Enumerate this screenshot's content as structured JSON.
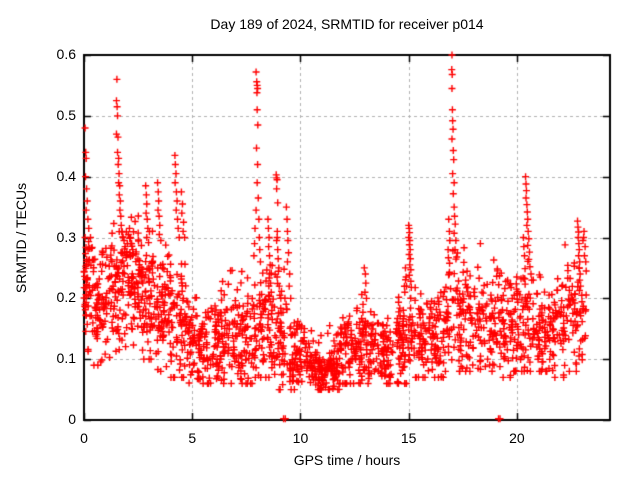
{
  "chart_data": {
    "type": "scatter",
    "title": "Day 189 of 2024, SRMTID for receiver p014",
    "xlabel": "GPS time / hours",
    "ylabel": "SRMTID / TECUs",
    "xlim": [
      0,
      24.3
    ],
    "ylim": [
      0,
      0.6
    ],
    "xtick_values": [
      0,
      5,
      10,
      15,
      20
    ],
    "xtick_labels": [
      "0",
      "5",
      "10",
      "15",
      "20"
    ],
    "ytick_values": [
      0,
      0.1,
      0.2,
      0.3,
      0.4,
      0.5,
      0.6
    ],
    "ytick_labels": [
      "0",
      "0.1",
      "0.2",
      "0.3",
      "0.4",
      "0.5",
      "0.6"
    ],
    "grid": true,
    "legend": "none",
    "marker": {
      "shape": "plus",
      "color": "#ff0000",
      "size": 7
    },
    "seed": 18924,
    "bands_format": [
      "x_start",
      "x_end",
      "count",
      "mean",
      "sd",
      "min",
      "max"
    ],
    "bands": [
      [
        0.0,
        0.5,
        60,
        0.21,
        0.05,
        0.09,
        0.33
      ],
      [
        0.5,
        1.2,
        70,
        0.19,
        0.045,
        0.09,
        0.31
      ],
      [
        1.2,
        1.9,
        70,
        0.22,
        0.05,
        0.1,
        0.34
      ],
      [
        1.9,
        2.6,
        70,
        0.23,
        0.05,
        0.11,
        0.37
      ],
      [
        2.6,
        3.3,
        70,
        0.21,
        0.05,
        0.1,
        0.35
      ],
      [
        3.3,
        4.0,
        70,
        0.18,
        0.045,
        0.08,
        0.31
      ],
      [
        4.0,
        4.7,
        65,
        0.16,
        0.05,
        0.07,
        0.3
      ],
      [
        4.7,
        5.4,
        65,
        0.13,
        0.035,
        0.06,
        0.23
      ],
      [
        5.4,
        6.2,
        70,
        0.13,
        0.035,
        0.06,
        0.24
      ],
      [
        6.2,
        7.0,
        70,
        0.135,
        0.04,
        0.06,
        0.27
      ],
      [
        7.0,
        7.8,
        70,
        0.13,
        0.04,
        0.06,
        0.25
      ],
      [
        7.8,
        8.6,
        70,
        0.15,
        0.05,
        0.07,
        0.3
      ],
      [
        8.6,
        9.4,
        70,
        0.14,
        0.05,
        0.05,
        0.3
      ],
      [
        9.4,
        10.2,
        70,
        0.1,
        0.03,
        0.05,
        0.2
      ],
      [
        10.2,
        11.0,
        75,
        0.085,
        0.025,
        0.05,
        0.15
      ],
      [
        11.0,
        11.8,
        75,
        0.085,
        0.025,
        0.05,
        0.16
      ],
      [
        11.8,
        12.6,
        70,
        0.105,
        0.03,
        0.06,
        0.19
      ],
      [
        12.6,
        13.4,
        70,
        0.12,
        0.035,
        0.06,
        0.25
      ],
      [
        13.4,
        14.2,
        70,
        0.11,
        0.03,
        0.06,
        0.22
      ],
      [
        14.2,
        15.0,
        65,
        0.12,
        0.035,
        0.06,
        0.24
      ],
      [
        15.0,
        15.8,
        65,
        0.13,
        0.04,
        0.07,
        0.26
      ],
      [
        15.8,
        16.6,
        65,
        0.13,
        0.04,
        0.07,
        0.27
      ],
      [
        16.6,
        17.4,
        65,
        0.16,
        0.05,
        0.08,
        0.3
      ],
      [
        17.4,
        18.2,
        65,
        0.16,
        0.05,
        0.08,
        0.3
      ],
      [
        18.2,
        19.0,
        65,
        0.155,
        0.045,
        0.08,
        0.29
      ],
      [
        19.0,
        19.8,
        65,
        0.15,
        0.045,
        0.07,
        0.28
      ],
      [
        19.8,
        20.6,
        65,
        0.17,
        0.05,
        0.08,
        0.3
      ],
      [
        20.6,
        21.4,
        65,
        0.15,
        0.045,
        0.08,
        0.28
      ],
      [
        21.4,
        22.2,
        65,
        0.145,
        0.04,
        0.07,
        0.26
      ],
      [
        22.2,
        23.2,
        70,
        0.17,
        0.05,
        0.08,
        0.3
      ]
    ],
    "features": [
      {
        "name": "start-cluster",
        "points": [
          [
            0.05,
            0.48
          ],
          [
            0.08,
            0.44
          ],
          [
            0.1,
            0.43
          ],
          [
            0.07,
            0.4
          ],
          [
            0.12,
            0.38
          ],
          [
            0.15,
            0.36
          ],
          [
            0.1,
            0.345
          ],
          [
            0.18,
            0.33
          ],
          [
            0.22,
            0.315
          ],
          [
            0.05,
            0.3
          ],
          [
            0.3,
            0.3
          ]
        ]
      },
      {
        "name": "spike-1.6h",
        "points": [
          [
            1.52,
            0.56
          ],
          [
            1.5,
            0.525
          ],
          [
            1.53,
            0.515
          ],
          [
            1.55,
            0.5
          ],
          [
            1.5,
            0.47
          ],
          [
            1.57,
            0.465
          ],
          [
            1.55,
            0.44
          ],
          [
            1.6,
            0.43
          ],
          [
            1.58,
            0.42
          ],
          [
            1.62,
            0.405
          ],
          [
            1.6,
            0.39
          ],
          [
            1.65,
            0.385
          ],
          [
            1.63,
            0.37
          ],
          [
            1.68,
            0.36
          ],
          [
            1.66,
            0.345
          ],
          [
            1.7,
            0.335
          ],
          [
            1.72,
            0.32
          ],
          [
            1.75,
            0.31
          ],
          [
            1.8,
            0.3
          ],
          [
            1.85,
            0.295
          ],
          [
            1.9,
            0.285
          ],
          [
            1.78,
            0.275
          ],
          [
            1.95,
            0.27
          ],
          [
            2.0,
            0.29
          ],
          [
            2.05,
            0.305
          ],
          [
            2.1,
            0.315
          ],
          [
            2.15,
            0.3
          ],
          [
            2.2,
            0.29
          ],
          [
            2.12,
            0.275
          ],
          [
            2.25,
            0.28
          ]
        ]
      },
      {
        "name": "spike-2.9h",
        "points": [
          [
            2.85,
            0.385
          ],
          [
            2.88,
            0.37
          ],
          [
            2.9,
            0.355
          ],
          [
            2.87,
            0.34
          ],
          [
            2.92,
            0.33
          ],
          [
            2.95,
            0.315
          ],
          [
            2.9,
            0.3
          ]
        ]
      },
      {
        "name": "spike-3.45h",
        "points": [
          [
            3.4,
            0.39
          ],
          [
            3.43,
            0.375
          ],
          [
            3.45,
            0.36
          ],
          [
            3.42,
            0.345
          ],
          [
            3.47,
            0.335
          ],
          [
            3.5,
            0.32
          ],
          [
            3.48,
            0.305
          ],
          [
            3.55,
            0.295
          ]
        ]
      },
      {
        "name": "spike-4.25h",
        "points": [
          [
            4.2,
            0.435
          ],
          [
            4.22,
            0.42
          ],
          [
            4.25,
            0.405
          ],
          [
            4.21,
            0.39
          ],
          [
            4.27,
            0.375
          ],
          [
            4.3,
            0.36
          ],
          [
            4.26,
            0.345
          ],
          [
            4.32,
            0.33
          ],
          [
            4.35,
            0.315
          ],
          [
            4.4,
            0.3
          ],
          [
            4.5,
            0.375
          ],
          [
            4.55,
            0.355
          ],
          [
            4.52,
            0.34
          ],
          [
            4.6,
            0.325
          ],
          [
            4.58,
            0.31
          ],
          [
            4.65,
            0.3
          ]
        ]
      },
      {
        "name": "spike-8.0h",
        "points": [
          [
            7.95,
            0.572
          ],
          [
            7.98,
            0.556
          ],
          [
            8.0,
            0.55
          ],
          [
            8.02,
            0.545
          ],
          [
            7.99,
            0.538
          ],
          [
            8.0,
            0.51
          ],
          [
            8.03,
            0.485
          ],
          [
            7.97,
            0.447
          ],
          [
            8.02,
            0.42
          ],
          [
            8.0,
            0.39
          ],
          [
            8.05,
            0.365
          ],
          [
            7.95,
            0.345
          ],
          [
            8.08,
            0.33
          ],
          [
            7.9,
            0.315
          ],
          [
            8.1,
            0.3
          ],
          [
            7.88,
            0.29
          ],
          [
            8.12,
            0.28
          ],
          [
            7.85,
            0.27
          ],
          [
            8.15,
            0.26
          ]
        ]
      },
      {
        "name": "chain-8.6h",
        "points": [
          [
            8.5,
            0.33
          ],
          [
            8.52,
            0.315
          ],
          [
            8.55,
            0.3
          ],
          [
            8.53,
            0.285
          ],
          [
            8.57,
            0.27
          ],
          [
            8.6,
            0.255
          ],
          [
            8.58,
            0.24
          ],
          [
            8.62,
            0.225
          ],
          [
            8.65,
            0.21
          ],
          [
            8.6,
            0.195
          ],
          [
            8.68,
            0.18
          ],
          [
            8.7,
            0.165
          ]
        ]
      },
      {
        "name": "cluster-8.9h",
        "points": [
          [
            8.88,
            0.403
          ],
          [
            8.9,
            0.398
          ],
          [
            8.92,
            0.395
          ],
          [
            8.9,
            0.38
          ],
          [
            8.95,
            0.357
          ],
          [
            8.93,
            0.31
          ],
          [
            8.9,
            0.295
          ],
          [
            8.95,
            0.28
          ],
          [
            8.97,
            0.265
          ],
          [
            9.0,
            0.25
          ],
          [
            8.92,
            0.235
          ],
          [
            9.02,
            0.22
          ],
          [
            9.05,
            0.205
          ],
          [
            9.35,
            0.35
          ],
          [
            9.38,
            0.33
          ],
          [
            9.4,
            0.31
          ],
          [
            9.42,
            0.295
          ],
          [
            9.45,
            0.275
          ],
          [
            9.4,
            0.26
          ],
          [
            9.5,
            0.24
          ],
          [
            9.48,
            0.22
          ],
          [
            9.55,
            0.2
          ]
        ]
      },
      {
        "name": "bump-13.0h",
        "points": [
          [
            12.95,
            0.25
          ],
          [
            13.0,
            0.24
          ],
          [
            13.02,
            0.225
          ],
          [
            12.98,
            0.21
          ],
          [
            13.05,
            0.2
          ]
        ]
      },
      {
        "name": "spike-15.05h",
        "points": [
          [
            15.0,
            0.32
          ],
          [
            15.02,
            0.315
          ],
          [
            15.04,
            0.308
          ],
          [
            15.0,
            0.3
          ],
          [
            15.05,
            0.295
          ],
          [
            15.03,
            0.288
          ],
          [
            15.07,
            0.28
          ],
          [
            15.02,
            0.272
          ],
          [
            15.08,
            0.265
          ],
          [
            15.05,
            0.255
          ],
          [
            15.1,
            0.247
          ],
          [
            15.03,
            0.238
          ],
          [
            15.1,
            0.228
          ],
          [
            15.12,
            0.218
          ],
          [
            14.85,
            0.25
          ],
          [
            14.88,
            0.235
          ],
          [
            14.9,
            0.22
          ],
          [
            14.82,
            0.21
          ]
        ]
      },
      {
        "name": "spike-17.0h",
        "points": [
          [
            17.0,
            0.6
          ],
          [
            16.99,
            0.576
          ],
          [
            17.01,
            0.568
          ],
          [
            17.0,
            0.545
          ],
          [
            17.02,
            0.51
          ],
          [
            17.03,
            0.492
          ],
          [
            17.05,
            0.478
          ],
          [
            17.0,
            0.462
          ],
          [
            17.06,
            0.443
          ],
          [
            17.08,
            0.428
          ],
          [
            17.03,
            0.405
          ],
          [
            17.1,
            0.39
          ],
          [
            17.06,
            0.372
          ],
          [
            17.1,
            0.35
          ],
          [
            17.12,
            0.335
          ],
          [
            17.15,
            0.322
          ],
          [
            17.1,
            0.307
          ],
          [
            17.18,
            0.295
          ],
          [
            17.14,
            0.28
          ],
          [
            17.22,
            0.268
          ],
          [
            16.85,
            0.33
          ],
          [
            16.88,
            0.31
          ],
          [
            16.9,
            0.295
          ],
          [
            16.82,
            0.28
          ]
        ]
      },
      {
        "name": "spike-20.45h",
        "points": [
          [
            20.4,
            0.4
          ],
          [
            20.42,
            0.388
          ],
          [
            20.44,
            0.377
          ],
          [
            20.42,
            0.365
          ],
          [
            20.46,
            0.354
          ],
          [
            20.48,
            0.342
          ],
          [
            20.5,
            0.33
          ],
          [
            20.46,
            0.32
          ],
          [
            20.52,
            0.31
          ],
          [
            20.55,
            0.298
          ],
          [
            20.5,
            0.287
          ],
          [
            20.58,
            0.276
          ],
          [
            20.55,
            0.264
          ],
          [
            20.6,
            0.252
          ],
          [
            20.65,
            0.24
          ],
          [
            20.3,
            0.3
          ],
          [
            20.32,
            0.285
          ],
          [
            20.35,
            0.27
          ]
        ]
      },
      {
        "name": "cluster-22.9h",
        "points": [
          [
            22.8,
            0.327
          ],
          [
            22.82,
            0.317
          ],
          [
            22.85,
            0.309
          ],
          [
            22.83,
            0.3
          ],
          [
            22.86,
            0.29
          ],
          [
            22.88,
            0.28
          ],
          [
            22.85,
            0.27
          ],
          [
            22.9,
            0.26
          ],
          [
            22.88,
            0.25
          ],
          [
            22.92,
            0.24
          ],
          [
            22.9,
            0.23
          ],
          [
            22.94,
            0.22
          ],
          [
            23.05,
            0.295
          ],
          [
            23.1,
            0.31
          ],
          [
            23.08,
            0.3
          ],
          [
            23.15,
            0.285
          ],
          [
            23.12,
            0.27
          ],
          [
            23.18,
            0.26
          ],
          [
            23.2,
            0.245
          ]
        ]
      },
      {
        "name": "zero-outliers",
        "points": [
          [
            9.22,
            0.002
          ],
          [
            9.3,
            0.002
          ],
          [
            19.15,
            0.002
          ],
          [
            19.22,
            0.002
          ]
        ]
      }
    ]
  },
  "colors": {
    "marker": "#ff0000",
    "grid": "#b0b0b0",
    "axis": "#000000",
    "background": "#ffffff",
    "text": "#000000"
  }
}
